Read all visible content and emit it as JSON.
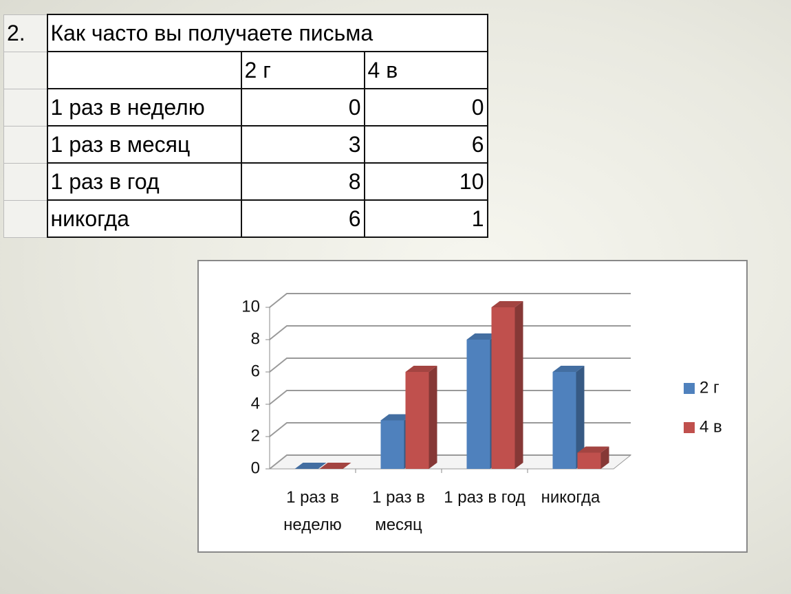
{
  "table": {
    "number": "2.",
    "title": "Как часто вы получаете письма",
    "columns": [
      "2 г",
      "4 в"
    ],
    "rows": [
      {
        "label": "1 раз в неделю",
        "values": [
          0,
          0
        ]
      },
      {
        "label": "1 раз в месяц",
        "values": [
          3,
          6
        ]
      },
      {
        "label": "1 раз в год",
        "values": [
          8,
          10
        ]
      },
      {
        "label": "никогда",
        "values": [
          6,
          1
        ]
      }
    ]
  },
  "chart_data": {
    "type": "bar3d",
    "categories": [
      "1 раз в неделю",
      "1 раз в месяц",
      "1 раз в год",
      "никогда"
    ],
    "series": [
      {
        "name": "2 г",
        "color": "#4f81bd",
        "values": [
          0,
          3,
          8,
          6
        ]
      },
      {
        "name": "4 в",
        "color": "#c0504d",
        "values": [
          0,
          6,
          10,
          1
        ]
      }
    ],
    "ylim": [
      0,
      10
    ],
    "yticks": [
      0,
      2,
      4,
      6,
      8,
      10
    ],
    "grid": true,
    "legend": "right"
  }
}
